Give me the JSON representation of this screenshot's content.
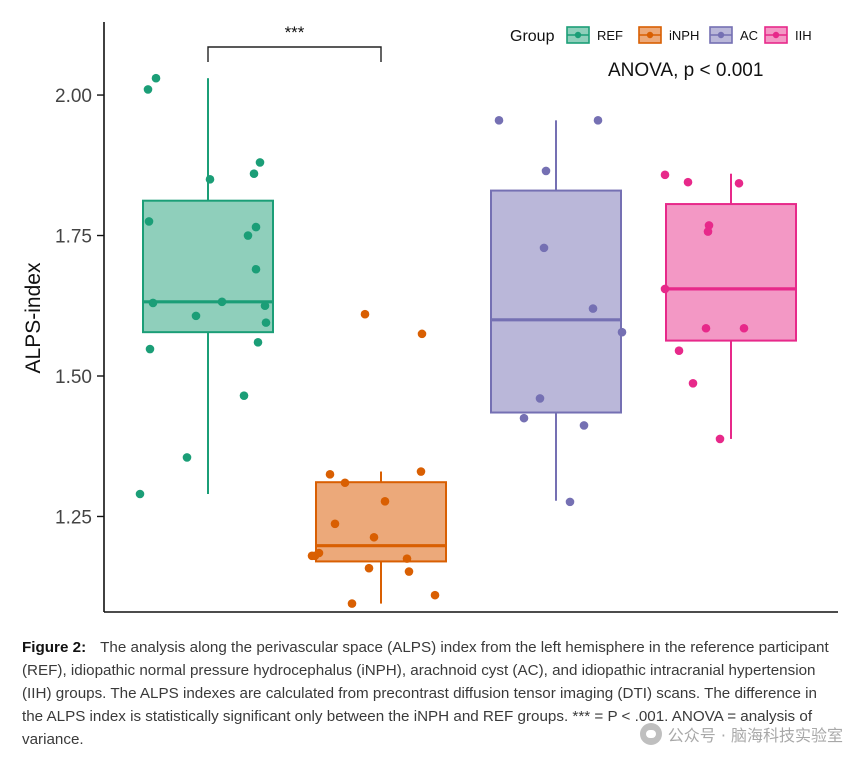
{
  "chart_data": {
    "type": "boxplot",
    "ylabel": "ALPS-index",
    "ylim": [
      1.08,
      2.13
    ],
    "yticks": [
      1.25,
      1.5,
      1.75,
      2.0
    ],
    "ytick_labels": [
      "1.25",
      "1.50",
      "1.75",
      "2.00"
    ],
    "legend_title": "Group",
    "legend_position": "top-right",
    "annotation": "ANOVA, p < 0.001",
    "significance": {
      "label": "***",
      "between": [
        "REF",
        "iNPH"
      ]
    },
    "groups": [
      {
        "name": "REF",
        "color": "#1b9e77",
        "fill": "#8fcfbb",
        "box": {
          "min": 1.29,
          "q1": 1.578,
          "median": 1.632,
          "q3": 1.812,
          "max": 2.03
        },
        "points": [
          2.01,
          2.03,
          1.85,
          1.88,
          1.86,
          1.775,
          1.765,
          1.75,
          1.69,
          1.632,
          1.625,
          1.63,
          1.607,
          1.595,
          1.56,
          1.548,
          1.465,
          1.355,
          1.29
        ]
      },
      {
        "name": "iNPH",
        "color": "#d95f02",
        "fill": "#eca97a",
        "box": {
          "min": 1.095,
          "q1": 1.17,
          "median": 1.198,
          "q3": 1.311,
          "max": 1.33
        },
        "points": [
          1.61,
          1.575,
          1.33,
          1.325,
          1.31,
          1.277,
          1.237,
          1.213,
          1.185,
          1.18,
          1.18,
          1.175,
          1.158,
          1.152,
          1.11,
          1.095
        ]
      },
      {
        "name": "AC",
        "color": "#7570b3",
        "fill": "#bab7d9",
        "box": {
          "min": 1.278,
          "q1": 1.435,
          "median": 1.6,
          "q3": 1.83,
          "max": 1.955
        },
        "points": [
          1.955,
          1.955,
          1.865,
          1.728,
          1.62,
          1.578,
          1.46,
          1.425,
          1.412,
          1.276
        ]
      },
      {
        "name": "IIH",
        "color": "#e7298a",
        "fill": "#f398c5",
        "box": {
          "min": 1.388,
          "q1": 1.563,
          "median": 1.655,
          "q3": 1.806,
          "max": 1.86
        },
        "points": [
          1.858,
          1.845,
          1.843,
          1.768,
          1.757,
          1.655,
          1.585,
          1.585,
          1.545,
          1.487,
          1.388
        ]
      }
    ]
  },
  "caption": {
    "label": "Figure 2:",
    "text": "The analysis along the perivascular space (ALPS) index from the left hemisphere in the reference participant (REF), idiopathic normal pressure hydrocephalus (iNPH), arachnoid cyst (AC), and idiopathic intracranial hypertension (IIH) groups. The ALPS indexes are calculated from precontrast diffusion tensor imaging (DTI) scans. The difference in the ALPS index is statistically significant only between the iNPH and REF groups. *** = P < .001. ANOVA = analysis of variance."
  },
  "watermark": {
    "text": "公众号 · 脑海科技实验室"
  }
}
